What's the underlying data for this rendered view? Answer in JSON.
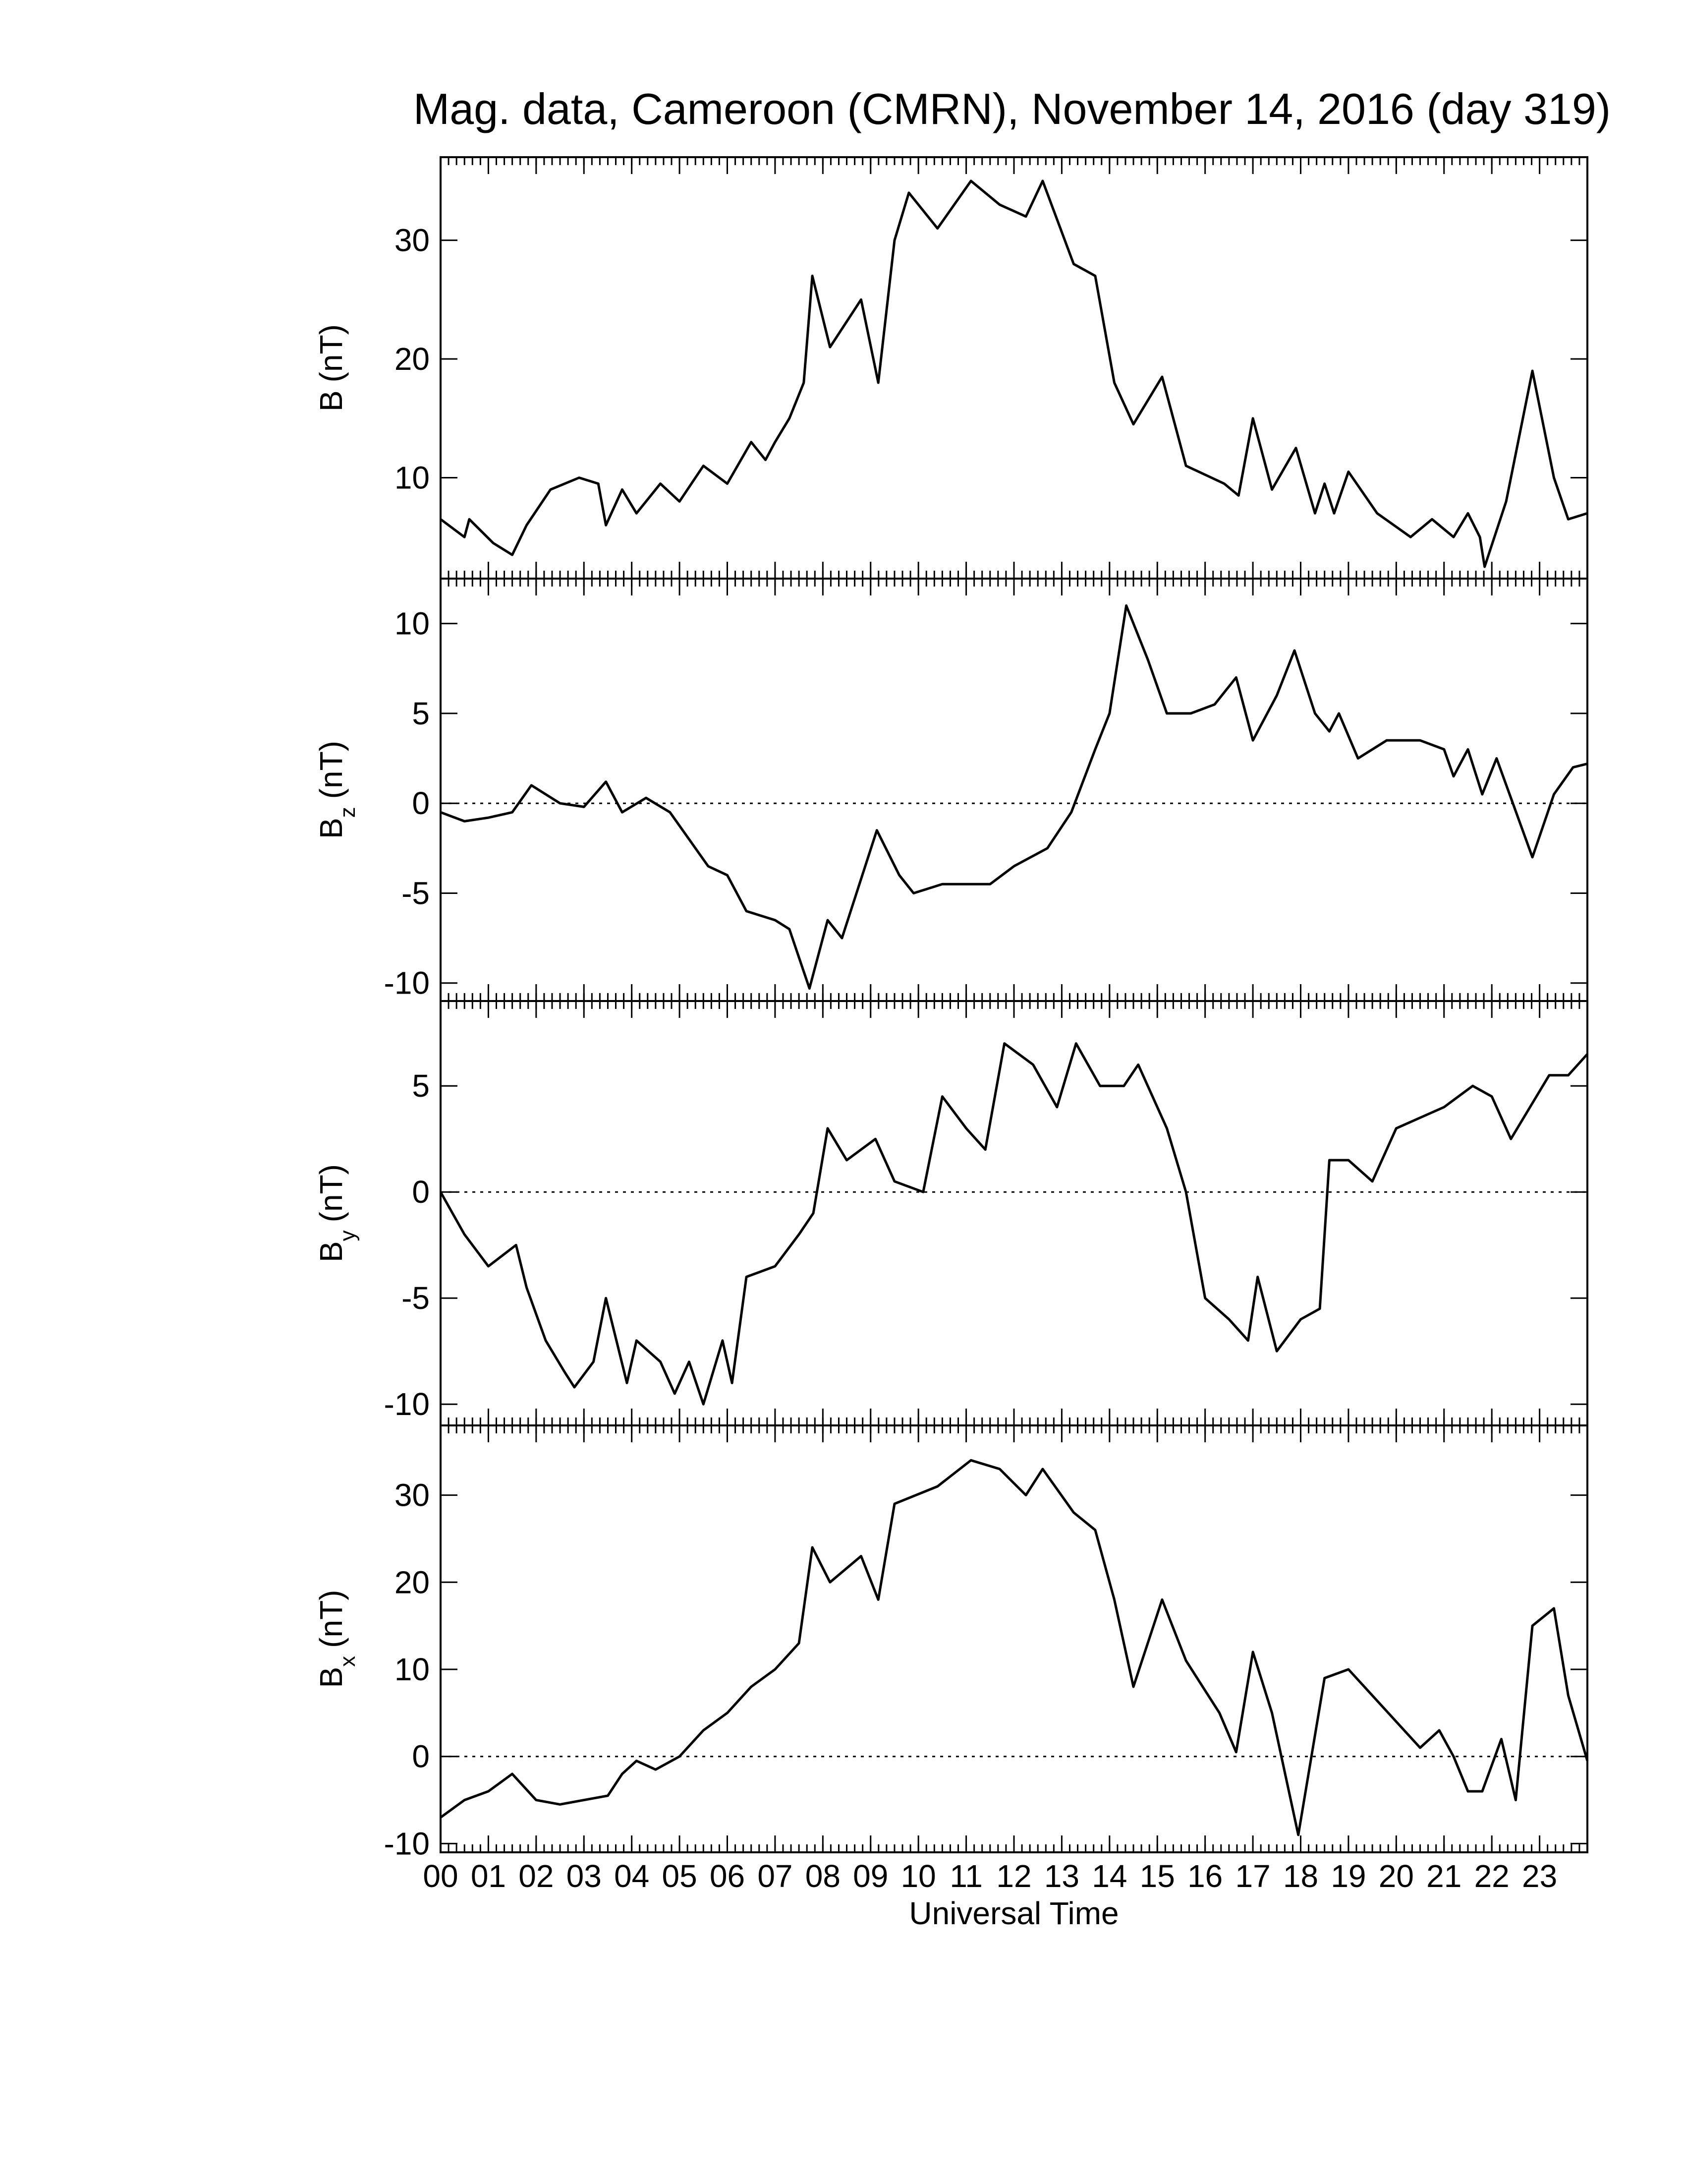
{
  "chart_data": [
    {
      "type": "line",
      "title": "Mag. data, Cameroon (CMRN), November 14, 2016 (day 319)",
      "ylabel": {
        "main": "B",
        "unit": "(nT)"
      },
      "color": "#000000",
      "zero_line": false,
      "xlim": [
        0,
        24
      ],
      "ylim": [
        1.5,
        37
      ],
      "yticks": [
        10,
        20,
        30
      ],
      "x": [
        0,
        0.5,
        0.6,
        1.1,
        1.5,
        1.8,
        2.3,
        2.9,
        3.3,
        3.46,
        3.8,
        4.1,
        4.6,
        5.0,
        5.5,
        6.0,
        6.5,
        6.8,
        7.0,
        7.3,
        7.6,
        7.78,
        8.15,
        8.8,
        9.16,
        9.5,
        9.8,
        10.4,
        11.1,
        11.7,
        12.25,
        12.6,
        13.25,
        13.7,
        14.1,
        14.5,
        15.1,
        15.6,
        16.4,
        16.7,
        17.0,
        17.4,
        17.9,
        18.3,
        18.5,
        18.7,
        19.0,
        19.6,
        20.3,
        20.75,
        21.2,
        21.5,
        21.75,
        21.85,
        22.3,
        22.85,
        23.3,
        23.6,
        24
      ],
      "values": [
        6.5,
        5,
        6.5,
        4.5,
        3.5,
        6,
        9,
        10,
        9.5,
        6,
        9,
        7,
        9.5,
        8,
        11,
        9.5,
        13,
        11.5,
        13,
        15,
        18,
        27,
        21,
        25,
        18,
        30,
        34,
        31,
        35,
        33,
        32,
        35,
        28,
        27,
        18,
        14.5,
        18.5,
        11,
        9.5,
        8.5,
        15,
        9,
        12.5,
        7,
        9.5,
        7,
        10.5,
        7,
        5,
        6.5,
        5,
        7,
        5,
        2.5,
        8,
        19,
        10,
        6.5,
        7
      ]
    },
    {
      "type": "line",
      "ylabel": {
        "main": "B",
        "sub": "z",
        "unit": "(nT)"
      },
      "color": "#000000",
      "zero_line": true,
      "xlim": [
        0,
        24
      ],
      "ylim": [
        -11,
        12.5
      ],
      "yticks": [
        -10,
        -5,
        0,
        5,
        10
      ],
      "x": [
        0,
        0.5,
        1.0,
        1.5,
        1.9,
        2.5,
        3.0,
        3.46,
        3.8,
        4.3,
        4.8,
        5.2,
        5.6,
        6.0,
        6.4,
        7.0,
        7.3,
        7.72,
        8.1,
        8.4,
        9.13,
        9.6,
        9.9,
        10.5,
        11.5,
        12.0,
        12.7,
        13.2,
        13.7,
        14.0,
        14.35,
        14.8,
        15.2,
        15.7,
        16.2,
        16.65,
        17.0,
        17.5,
        17.87,
        18.3,
        18.6,
        18.8,
        19.2,
        19.8,
        20.5,
        21.0,
        21.2,
        21.5,
        21.8,
        22.1,
        22.85,
        23.3,
        23.7,
        24
      ],
      "values": [
        -0.5,
        -1,
        -0.8,
        -0.5,
        1,
        0,
        -0.2,
        1.2,
        -0.5,
        0.3,
        -0.5,
        -2,
        -3.5,
        -4,
        -6,
        -6.5,
        -7,
        -10.3,
        -6.5,
        -7.5,
        -1.5,
        -4,
        -5,
        -4.5,
        -4.5,
        -3.5,
        -2.5,
        -0.5,
        3,
        5,
        11,
        8,
        5,
        5,
        5.5,
        7,
        3.5,
        6,
        8.5,
        5,
        4,
        5,
        2.5,
        3.5,
        3.5,
        3,
        1.5,
        3,
        0.5,
        2.5,
        -3,
        0.5,
        2,
        2.2
      ]
    },
    {
      "type": "line",
      "ylabel": {
        "main": "B",
        "sub": "y",
        "unit": "(nT)"
      },
      "color": "#000000",
      "zero_line": true,
      "xlim": [
        0,
        24
      ],
      "ylim": [
        -11,
        9
      ],
      "yticks": [
        -10,
        -5,
        0,
        5
      ],
      "x": [
        0,
        0.5,
        1.0,
        1.58,
        1.8,
        2.2,
        2.6,
        2.8,
        3.2,
        3.46,
        3.9,
        4.1,
        4.6,
        4.9,
        5.2,
        5.5,
        5.9,
        6.1,
        6.4,
        7.0,
        7.5,
        7.8,
        8.1,
        8.5,
        9.1,
        9.5,
        10.1,
        10.5,
        11.0,
        11.4,
        11.8,
        12.4,
        12.9,
        13.3,
        13.8,
        14.3,
        14.6,
        15.2,
        15.6,
        16.0,
        16.5,
        16.9,
        17.1,
        17.5,
        18.0,
        18.4,
        18.6,
        19.0,
        19.5,
        20.0,
        20.5,
        21.0,
        21.6,
        22.0,
        22.4,
        22.8,
        23.2,
        23.6,
        24
      ],
      "values": [
        0,
        -2,
        -3.5,
        -2.5,
        -4.5,
        -7,
        -8.5,
        -9.2,
        -8,
        -5,
        -9,
        -7,
        -8,
        -9.5,
        -8,
        -10,
        -7,
        -9,
        -4,
        -3.5,
        -2,
        -1,
        3,
        1.5,
        2.5,
        0.5,
        0,
        4.5,
        3,
        2,
        7,
        6,
        4,
        7,
        5,
        5,
        6,
        3,
        0,
        -5,
        -6,
        -7,
        -4,
        -7.5,
        -6,
        -5.5,
        1.5,
        1.5,
        0.5,
        3,
        3.5,
        4,
        5,
        4.5,
        2.5,
        4,
        5.5,
        5.5,
        6.5
      ]
    },
    {
      "type": "line",
      "ylabel": {
        "main": "B",
        "sub": "x",
        "unit": "(nT)"
      },
      "color": "#000000",
      "zero_line": true,
      "xlabel": "Universal Time",
      "xlim": [
        0,
        24
      ],
      "ylim": [
        -11,
        38
      ],
      "yticks": [
        -10,
        0,
        10,
        20,
        30
      ],
      "xticks": [
        {
          "value": 0,
          "label": "00"
        },
        {
          "value": 1,
          "label": "01"
        },
        {
          "value": 2,
          "label": "02"
        },
        {
          "value": 3,
          "label": "03"
        },
        {
          "value": 4,
          "label": "04"
        },
        {
          "value": 5,
          "label": "05"
        },
        {
          "value": 6,
          "label": "06"
        },
        {
          "value": 7,
          "label": "07"
        },
        {
          "value": 8,
          "label": "08"
        },
        {
          "value": 9,
          "label": "09"
        },
        {
          "value": 10,
          "label": "10"
        },
        {
          "value": 11,
          "label": "11"
        },
        {
          "value": 12,
          "label": "12"
        },
        {
          "value": 13,
          "label": "13"
        },
        {
          "value": 14,
          "label": "14"
        },
        {
          "value": 15,
          "label": "15"
        },
        {
          "value": 16,
          "label": "16"
        },
        {
          "value": 17,
          "label": "17"
        },
        {
          "value": 18,
          "label": "18"
        },
        {
          "value": 19,
          "label": "19"
        },
        {
          "value": 20,
          "label": "20"
        },
        {
          "value": 21,
          "label": "21"
        },
        {
          "value": 22,
          "label": "22"
        },
        {
          "value": 23,
          "label": "23"
        }
      ],
      "x": [
        0,
        0.5,
        1.0,
        1.5,
        2.0,
        2.5,
        3.0,
        3.5,
        3.8,
        4.1,
        4.5,
        5.0,
        5.5,
        6.0,
        6.5,
        7.0,
        7.5,
        7.78,
        8.15,
        8.8,
        9.16,
        9.5,
        10.4,
        11.1,
        11.7,
        12.25,
        12.6,
        13.25,
        13.7,
        14.1,
        14.5,
        15.1,
        15.6,
        16.3,
        16.65,
        17.0,
        17.4,
        17.95,
        18.5,
        19.0,
        19.5,
        20.0,
        20.5,
        20.9,
        21.2,
        21.5,
        21.8,
        22.2,
        22.5,
        22.85,
        23.3,
        23.6,
        24
      ],
      "values": [
        -7,
        -5,
        -4,
        -2,
        -5,
        -5.5,
        -5,
        -4.5,
        -2,
        -0.5,
        -1.5,
        0,
        3,
        5,
        8,
        10,
        13,
        24,
        20,
        23,
        18,
        29,
        31,
        34,
        33,
        30,
        33,
        28,
        26,
        18,
        8,
        18,
        11,
        5,
        0.5,
        12,
        5,
        -9,
        9,
        10,
        7,
        4,
        1,
        3,
        0,
        -4,
        -4,
        2,
        -5,
        15,
        17,
        7,
        -0.5
      ]
    }
  ]
}
